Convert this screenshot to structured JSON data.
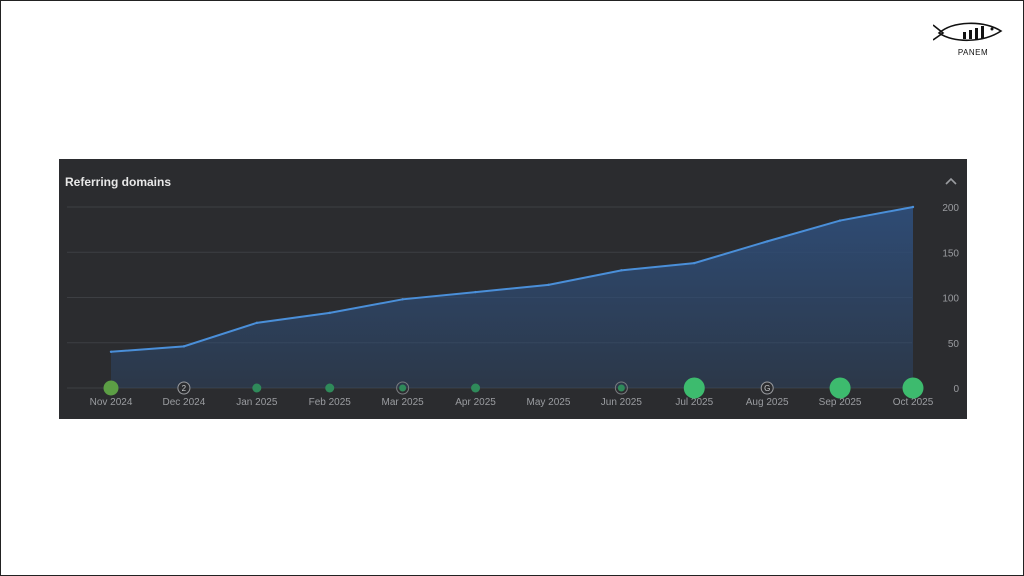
{
  "brand": {
    "name": "PANEM",
    "logo_icon": "fish-bar-chart-logo"
  },
  "panel": {
    "title": "Referring domains",
    "collapse_icon": "chevron-up-icon"
  },
  "chart_data": {
    "type": "area",
    "title": "Referring domains",
    "categories": [
      "Nov 2024",
      "Dec 2024",
      "Jan 2025",
      "Feb 2025",
      "Mar 2025",
      "Apr 2025",
      "May 2025",
      "Jun 2025",
      "Jul 2025",
      "Aug 2025",
      "Sep 2025",
      "Oct 2025"
    ],
    "series": [
      {
        "values": [
          40,
          46,
          72,
          83,
          98,
          106,
          114,
          130,
          138,
          162,
          185,
          200
        ]
      }
    ],
    "y_ticks": [
      "0",
      "50",
      "100",
      "150",
      "200"
    ],
    "ylim": [
      0,
      200
    ],
    "y_axis_position": "right",
    "grid": true,
    "line_color": "#4a8fd9",
    "area_color": "#2e4d78",
    "markers": [
      {
        "category": "Nov 2024",
        "kind": "large-dot",
        "color": "#5c9e45"
      },
      {
        "category": "Dec 2024",
        "kind": "ring-label",
        "label": "2"
      },
      {
        "category": "Jan 2025",
        "kind": "small-dot",
        "color": "#2f8a5a"
      },
      {
        "category": "Feb 2025",
        "kind": "small-dot",
        "color": "#2f8a5a"
      },
      {
        "category": "Mar 2025",
        "kind": "ring-dot",
        "color": "#2f8a5a"
      },
      {
        "category": "Apr 2025",
        "kind": "small-dot",
        "color": "#2f8a5a"
      },
      {
        "category": "Jun 2025",
        "kind": "ring-dot",
        "color": "#2f8a5a"
      },
      {
        "category": "Jul 2025",
        "kind": "big-dot",
        "color": "#3dbb6e"
      },
      {
        "category": "Aug 2025",
        "kind": "ring-label",
        "label": "G"
      },
      {
        "category": "Sep 2025",
        "kind": "big-dot",
        "color": "#3dbb6e"
      },
      {
        "category": "Oct 2025",
        "kind": "big-dot",
        "color": "#3dbb6e"
      }
    ]
  }
}
